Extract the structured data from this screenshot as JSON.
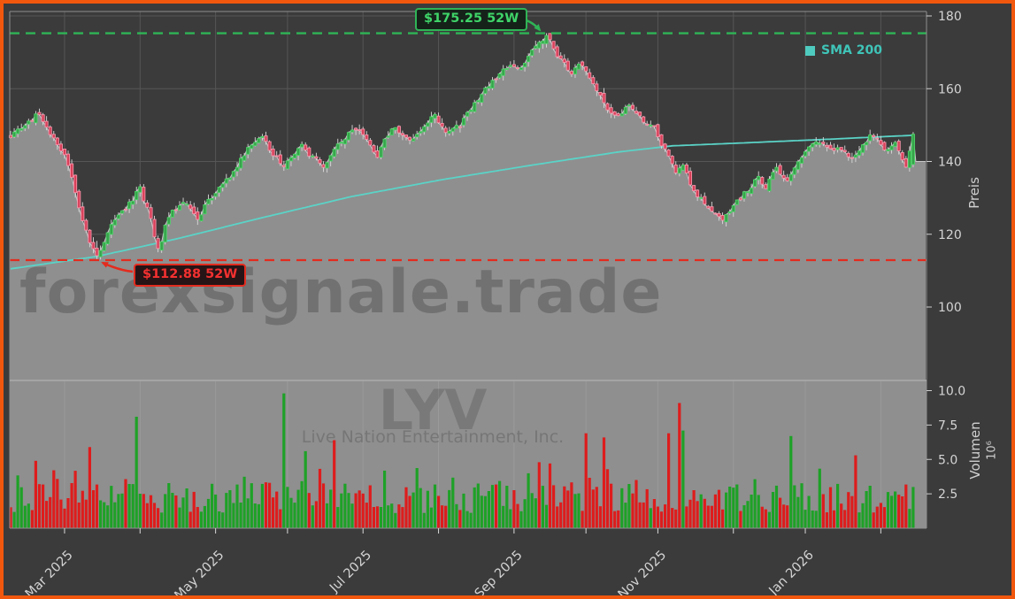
{
  "frame": {
    "border_color": "#f2570e",
    "background": "#3b3b3b"
  },
  "watermarks": {
    "main": "forexsignale.trade",
    "symbol": "LYV",
    "company": "Live Nation Entertainment, Inc."
  },
  "legend": {
    "sma_label": "SMA 200",
    "color": "#4fcabe",
    "text_color": "#3fc4b8"
  },
  "annotations": {
    "high": {
      "label": "$175.25 52W",
      "price": 175.25,
      "t": 149,
      "line_color": "#2fb456",
      "text_color": "#3fd468"
    },
    "low": {
      "label": "$112.88 52W",
      "price": 112.88,
      "t": 24,
      "line_color": "#e32b1e",
      "text_color": "#f33030"
    }
  },
  "axes": {
    "price": {
      "label": "Preis",
      "ticks": [
        180,
        160,
        140,
        120,
        100
      ],
      "range": [
        79.8,
        181.2
      ]
    },
    "volume": {
      "label": "Volumen",
      "exp_label": "10⁶",
      "range": [
        0,
        10.7
      ],
      "ticks": [
        {
          "v": 10.0,
          "label": "10.0"
        },
        {
          "v": 7.5,
          "label": "7.5"
        },
        {
          "v": 5.0,
          "label": "5.0"
        },
        {
          "v": 2.5,
          "label": "2.5"
        }
      ]
    }
  },
  "chart_data": {
    "type": "candlestick_with_volume",
    "symbol": "LYV",
    "company": "Live Nation Entertainment, Inc.",
    "grid": true,
    "legend_position": "top-right",
    "x_axis": {
      "months": [
        {
          "t": 15,
          "label": "Mar 2025"
        },
        {
          "t": 36,
          "label": ""
        },
        {
          "t": 57,
          "label": "May 2025"
        },
        {
          "t": 77,
          "label": ""
        },
        {
          "t": 98,
          "label": "Jul 2025"
        },
        {
          "t": 119,
          "label": ""
        },
        {
          "t": 140,
          "label": "Sep 2025"
        },
        {
          "t": 160,
          "label": ""
        },
        {
          "t": 180,
          "label": "Nov 2025"
        },
        {
          "t": 201,
          "label": ""
        },
        {
          "t": 221,
          "label": "Jan 2026"
        },
        {
          "t": 242,
          "label": ""
        }
      ]
    },
    "price": {
      "days": 252,
      "week52_high": 175.25,
      "week52_low": 112.88,
      "close_anchors": [
        [
          0,
          147
        ],
        [
          4,
          149.5
        ],
        [
          8,
          153.5
        ],
        [
          12,
          146
        ],
        [
          16,
          139.5
        ],
        [
          19,
          127
        ],
        [
          22,
          118
        ],
        [
          24,
          113.5
        ],
        [
          27,
          121
        ],
        [
          32,
          127
        ],
        [
          36,
          132.5
        ],
        [
          39,
          124
        ],
        [
          41,
          115.5
        ],
        [
          44,
          125
        ],
        [
          48,
          129
        ],
        [
          52,
          124.5
        ],
        [
          56,
          130.5
        ],
        [
          62,
          137
        ],
        [
          66,
          143.5
        ],
        [
          70,
          147.5
        ],
        [
          73,
          141.5
        ],
        [
          76,
          139
        ],
        [
          81,
          144.5
        ],
        [
          84,
          141
        ],
        [
          87,
          138.5
        ],
        [
          92,
          146
        ],
        [
          96,
          149
        ],
        [
          99,
          145.5
        ],
        [
          102,
          141.5
        ],
        [
          106,
          149.5
        ],
        [
          109,
          147.5
        ],
        [
          112,
          146
        ],
        [
          116,
          151
        ],
        [
          118,
          152.5
        ],
        [
          121,
          148.5
        ],
        [
          125,
          150
        ],
        [
          129,
          156
        ],
        [
          132,
          160
        ],
        [
          136,
          163.5
        ],
        [
          139,
          167
        ],
        [
          142,
          165.5
        ],
        [
          145,
          170
        ],
        [
          149,
          174.5
        ],
        [
          152,
          169.5
        ],
        [
          156,
          164.5
        ],
        [
          159,
          167
        ],
        [
          163,
          159.5
        ],
        [
          166,
          154.5
        ],
        [
          169,
          152.5
        ],
        [
          172,
          156
        ],
        [
          176,
          151.5
        ],
        [
          179,
          149
        ],
        [
          182,
          143
        ],
        [
          185,
          136.5
        ],
        [
          187,
          139
        ],
        [
          190,
          131.5
        ],
        [
          194,
          127.5
        ],
        [
          198,
          123.5
        ],
        [
          200,
          126.5
        ],
        [
          204,
          131
        ],
        [
          208,
          135.5
        ],
        [
          210,
          133
        ],
        [
          213,
          138.5
        ],
        [
          216,
          134.5
        ],
        [
          219,
          139.5
        ],
        [
          222,
          143.5
        ],
        [
          225,
          145.5
        ],
        [
          228,
          144
        ],
        [
          231,
          143
        ],
        [
          234,
          140.5
        ],
        [
          237,
          145
        ],
        [
          240,
          147.5
        ],
        [
          243,
          143.5
        ],
        [
          246,
          144.5
        ],
        [
          249,
          138.5
        ],
        [
          251,
          147.5
        ]
      ],
      "sma_anchors": [
        [
          0,
          110.5
        ],
        [
          24,
          113.9
        ],
        [
          46,
          118.7
        ],
        [
          71,
          124.8
        ],
        [
          95,
          130.4
        ],
        [
          120,
          135
        ],
        [
          145,
          139
        ],
        [
          169,
          142.6
        ],
        [
          184,
          144.3
        ],
        [
          206,
          145.2
        ],
        [
          225,
          146
        ],
        [
          251,
          147.2
        ]
      ],
      "specials": [
        {
          "t": 24,
          "open": 116.2,
          "close": 114.1,
          "high": 118.2,
          "low": 112.88
        },
        {
          "t": 149,
          "open": 172.4,
          "close": 174.6,
          "high": 175.25,
          "low": 171.3
        },
        {
          "t": 251,
          "open": 139.2,
          "close": 147.5,
          "high": 148.1,
          "low": 138.4
        }
      ],
      "right_extension_price": 140
    },
    "volume": {
      "unit": "10^6",
      "spikes": [
        {
          "t": 7,
          "v": 4.9,
          "dir": "down"
        },
        {
          "t": 22,
          "v": 5.9,
          "dir": "down"
        },
        {
          "t": 35,
          "v": 8.1,
          "dir": "up"
        },
        {
          "t": 76,
          "v": 9.8,
          "dir": "up"
        },
        {
          "t": 82,
          "v": 5.6,
          "dir": "up"
        },
        {
          "t": 90,
          "v": 6.4,
          "dir": "down"
        },
        {
          "t": 147,
          "v": 4.8,
          "dir": "down"
        },
        {
          "t": 160,
          "v": 6.9,
          "dir": "down"
        },
        {
          "t": 165,
          "v": 6.6,
          "dir": "down"
        },
        {
          "t": 183,
          "v": 6.9,
          "dir": "down"
        },
        {
          "t": 186,
          "v": 9.1,
          "dir": "down"
        },
        {
          "t": 187,
          "v": 7.1,
          "dir": "up"
        },
        {
          "t": 217,
          "v": 6.7,
          "dir": "up"
        },
        {
          "t": 235,
          "v": 5.3,
          "dir": "down"
        },
        {
          "t": 251,
          "v": 3.0,
          "dir": "up"
        }
      ]
    },
    "style": {
      "bg": "#3b3b3b",
      "area": "#8f8f8f",
      "grid": "#565656",
      "wick": "#d9d9d9",
      "up_fill": "#37a34b",
      "up_stroke": "#4ed268",
      "down_fill": "#d84059",
      "down_stroke": "#f693a9",
      "sma": "#5bd3c7",
      "vol_up": "#1ea127",
      "vol_down": "#de1c1c",
      "area_edge": "#c8c8c8",
      "spine": "#8f8f8f",
      "panel_divider": "#ababab",
      "tick_text": "#d4d4d4"
    }
  }
}
